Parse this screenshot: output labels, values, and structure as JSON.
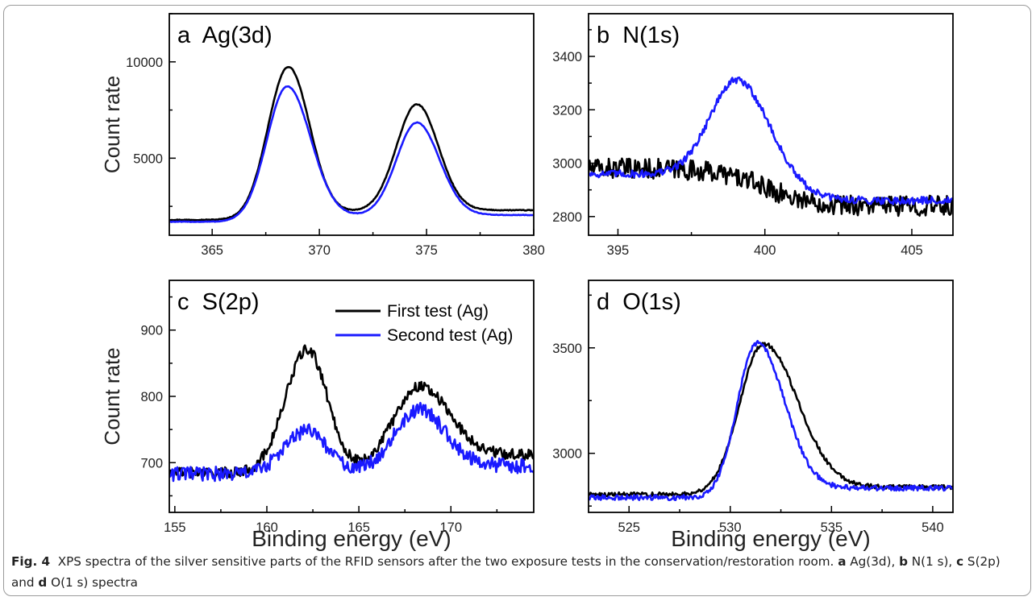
{
  "figure": {
    "shared_xlabel": "Binding energy (eV)",
    "legend": [
      "First test (Ag)",
      "Second test (Ag)"
    ]
  },
  "colors": {
    "first": "#000000",
    "second": "#1a1aff"
  },
  "caption": {
    "label": "Fig. 4",
    "lead": "XPS spectra of the silver sensitive parts of the RFID sensors after the two exposure tests in the conservation/restoration room. ",
    "parts": [
      {
        "letter": "a",
        "text": " Ag(3d), "
      },
      {
        "letter": "b",
        "text": " N(1 s), "
      },
      {
        "letter": "c",
        "text": " S(2p) and "
      },
      {
        "letter": "d",
        "text": " O(1 s) spectra"
      }
    ]
  },
  "chart_data": [
    {
      "type": "line",
      "panel": "a",
      "title": "a  Ag(3d)",
      "ylabel": "Count rate",
      "xlabel": "",
      "xlim": [
        363,
        380
      ],
      "ylim": [
        1000,
        12500
      ],
      "xticks": [
        365,
        370,
        375,
        380
      ],
      "yticks": [
        5000,
        10000
      ],
      "series": [
        {
          "name": "First test (Ag)",
          "peaks": [
            [
              368.55,
              7900,
              0.95,
              1.0
            ],
            [
              374.55,
              5500,
              0.95,
              1.0
            ]
          ],
          "base_left": 1800,
          "base_right": 2300,
          "step": 370.5,
          "noise": 20
        },
        {
          "name": "Second test (Ag)",
          "peaks": [
            [
              368.5,
              7000,
              0.95,
              1.1
            ],
            [
              374.55,
              4800,
              0.95,
              1.05
            ]
          ],
          "base_left": 1700,
          "base_right": 2050,
          "step": 370.5,
          "noise": 15
        }
      ]
    },
    {
      "type": "line",
      "panel": "b",
      "title": "b  N(1s)",
      "ylabel": "",
      "xlabel": "",
      "xlim": [
        394,
        406.4
      ],
      "ylim": [
        2730,
        3560
      ],
      "xticks": [
        395,
        400,
        405
      ],
      "yticks": [
        2800,
        3000,
        3200,
        3400
      ],
      "series": [
        {
          "name": "First test (Ag)",
          "peaks": [],
          "base_left": 2980,
          "base_right": 2840,
          "step": 400,
          "noise": 38
        },
        {
          "name": "Second test (Ag)",
          "peaks": [
            [
              399.1,
              375,
              0.95,
              1.1
            ]
          ],
          "base_left": 2960,
          "base_right": 2860,
          "step": 400,
          "noise": 14
        }
      ]
    },
    {
      "type": "line",
      "panel": "c",
      "title": "c  S(2p)",
      "ylabel": "Count rate",
      "xlabel": "Binding energy (eV)",
      "xlim": [
        154.7,
        174.5
      ],
      "ylim": [
        625,
        975
      ],
      "xticks": [
        155,
        160,
        165,
        170
      ],
      "yticks": [
        700,
        800,
        900
      ],
      "series": [
        {
          "name": "First test (Ag)",
          "peaks": [
            [
              162.2,
              185,
              1.2,
              1.1
            ],
            [
              168.3,
              105,
              1.35,
              1.6
            ]
          ],
          "base_left": 685,
          "base_right": 712,
          "step": 166,
          "noise": 8
        },
        {
          "name": "Second test (Ag)",
          "peaks": [
            [
              162.2,
              65,
              1.25,
              1.1
            ],
            [
              168.3,
              85,
              1.35,
              1.4
            ]
          ],
          "base_left": 683,
          "base_right": 695,
          "step": 166,
          "noise": 11
        }
      ]
    },
    {
      "type": "line",
      "panel": "d",
      "title": "d  O(1s)",
      "ylabel": "",
      "xlabel": "Binding energy (eV)",
      "xlim": [
        523,
        541
      ],
      "ylim": [
        2720,
        3820
      ],
      "xticks": [
        525,
        530,
        535,
        540
      ],
      "yticks": [
        3000,
        3500
      ],
      "series": [
        {
          "name": "First test (Ag)",
          "peaks": [
            [
              531.6,
              700,
              1.15,
              1.7
            ]
          ],
          "base_left": 2805,
          "base_right": 2840,
          "step": 532,
          "noise": 10
        },
        {
          "name": "Second test (Ag)",
          "peaks": [
            [
              531.3,
              720,
              0.95,
              1.35
            ]
          ],
          "base_left": 2790,
          "base_right": 2835,
          "step": 532,
          "noise": 12
        }
      ]
    }
  ]
}
